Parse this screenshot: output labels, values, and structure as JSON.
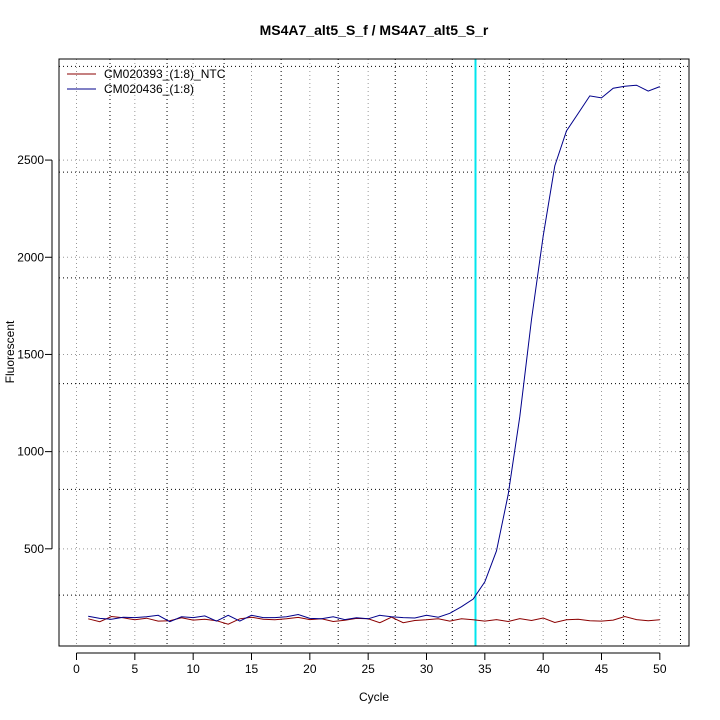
{
  "chart_data": {
    "type": "line",
    "title": "MS4A7_alt5_S_f / MS4A7_alt5_S_r",
    "xlabel": "Cycle",
    "ylabel": "Fluorescent",
    "xlim": [
      -1.5,
      52.5
    ],
    "ylim": [
      0,
      3020
    ],
    "xticks": [
      0,
      5,
      10,
      15,
      20,
      25,
      30,
      35,
      40,
      45,
      50
    ],
    "yticks": [
      500,
      1000,
      1500,
      2000,
      2500
    ],
    "x_minor_grid": [
      2.87,
      7.76,
      12.65,
      17.54,
      22.43,
      27.32,
      32.21,
      37.1,
      41.99,
      46.88,
      51.77
    ],
    "y_minor_grid": [
      262,
      806,
      1350,
      1894,
      2438,
      2982
    ],
    "grid": true,
    "threshold_cycle": 34.2,
    "threshold_color": "#00e5ee",
    "legend_position": "top-left",
    "series": [
      {
        "name": "CM020393_(1:8)_NTC",
        "color": "#8b0000",
        "x": [
          1,
          2,
          3,
          4,
          5,
          6,
          7,
          8,
          9,
          10,
          11,
          12,
          13,
          14,
          15,
          16,
          17,
          18,
          19,
          20,
          21,
          22,
          23,
          24,
          25,
          26,
          27,
          28,
          29,
          30,
          31,
          32,
          33,
          34,
          35,
          36,
          37,
          38,
          39,
          40,
          41,
          42,
          43,
          44,
          45,
          46,
          47,
          48,
          49,
          50
        ],
        "values": [
          140,
          125,
          152,
          145,
          135,
          143,
          128,
          130,
          145,
          133,
          138,
          130,
          112,
          140,
          148,
          138,
          135,
          140,
          147,
          136,
          140,
          126,
          132,
          142,
          140,
          120,
          148,
          120,
          131,
          135,
          140,
          128,
          140,
          135,
          128,
          136,
          126,
          141,
          131,
          144,
          121,
          135,
          138,
          130,
          128,
          133,
          152,
          136,
          130,
          135
        ]
      },
      {
        "name": "CM020436_(1:8)",
        "color": "#00008b",
        "x": [
          1,
          2,
          3,
          4,
          5,
          6,
          7,
          8,
          9,
          10,
          11,
          12,
          13,
          14,
          15,
          16,
          17,
          18,
          19,
          20,
          21,
          22,
          23,
          24,
          25,
          26,
          27,
          28,
          29,
          30,
          31,
          32,
          33,
          34,
          35,
          36,
          37,
          38,
          39,
          40,
          41,
          42,
          43,
          44,
          45,
          46,
          47,
          48,
          49,
          50
        ],
        "values": [
          153,
          142,
          138,
          148,
          146,
          150,
          158,
          125,
          150,
          146,
          155,
          128,
          158,
          128,
          158,
          146,
          146,
          150,
          162,
          142,
          140,
          150,
          136,
          145,
          140,
          158,
          150,
          146,
          144,
          158,
          148,
          168,
          202,
          242,
          330,
          490,
          780,
          1180,
          1680,
          2110,
          2470,
          2650,
          2740,
          2830,
          2820,
          2870,
          2880,
          2885,
          2855,
          2878
        ]
      }
    ]
  }
}
